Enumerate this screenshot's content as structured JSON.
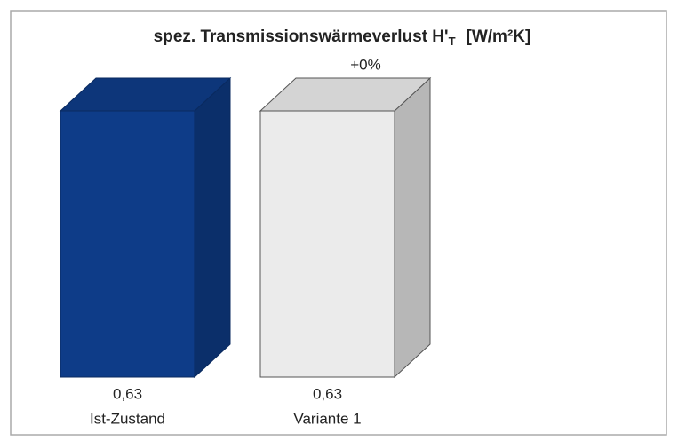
{
  "chart_data": {
    "type": "bar3d",
    "title": "spez. Transmissionswärmeverlust H'",
    "title_subscript": "T",
    "title_unit": "[W/m²K]",
    "categories": [
      "Ist-Zustand",
      "Variante 1"
    ],
    "values": [
      0.63,
      0.63
    ],
    "value_labels": [
      "0,63",
      "0,63"
    ],
    "colors": [
      "#0e3c88",
      "#ebebeb"
    ],
    "annotations": [
      {
        "category": 1,
        "text": "+0%"
      }
    ]
  }
}
